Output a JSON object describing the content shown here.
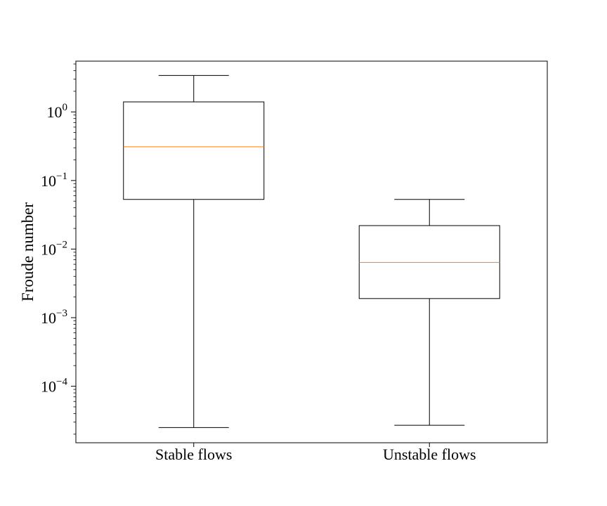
{
  "chart_data": {
    "type": "box",
    "title": "",
    "xlabel": "",
    "ylabel": "Froude number",
    "yscale": "log",
    "ylim": [
      1.5e-05,
      5.5
    ],
    "major_ticks": [
      {
        "value": 0.0001,
        "base": "10",
        "exp": "−4"
      },
      {
        "value": 0.001,
        "base": "10",
        "exp": "−3"
      },
      {
        "value": 0.01,
        "base": "10",
        "exp": "−2"
      },
      {
        "value": 0.1,
        "base": "10",
        "exp": "−1"
      },
      {
        "value": 1,
        "base": "10",
        "exp": "0"
      }
    ],
    "categories": [
      "Stable flows",
      "Unstable flows"
    ],
    "boxes": [
      {
        "label": "Stable flows",
        "whisker_low": 2.5e-05,
        "q1": 0.053,
        "median": 0.31,
        "q3": 1.4,
        "whisker_high": 3.4
      },
      {
        "label": "Unstable flows",
        "whisker_low": 2.7e-05,
        "q1": 0.0019,
        "median": 0.0064,
        "q3": 0.022,
        "whisker_high": 0.053
      }
    ],
    "grid": false,
    "colors": {
      "box": "#000000",
      "median": "#ff7f0e"
    }
  }
}
